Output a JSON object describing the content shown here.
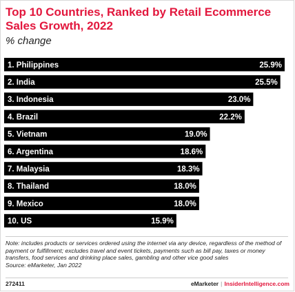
{
  "title": "Top 10 Countries, Ranked by Retail Ecommerce Sales Growth, 2022",
  "subtitle": "% change",
  "chart_data": {
    "type": "bar",
    "orientation": "horizontal",
    "categories": [
      "1. Philippines",
      "2. India",
      "3. Indonesia",
      "4. Brazil",
      "5. Vietnam",
      "6. Argentina",
      "7. Malaysia",
      "8. Thailand",
      "9. Mexico",
      "10. US"
    ],
    "values": [
      25.9,
      25.5,
      23.0,
      22.2,
      19.0,
      18.6,
      18.3,
      18.0,
      18.0,
      15.9
    ],
    "value_labels": [
      "25.9%",
      "25.5%",
      "23.0%",
      "22.2%",
      "19.0%",
      "18.6%",
      "18.3%",
      "18.0%",
      "18.0%",
      "15.9%"
    ],
    "bar_color": "#000000",
    "label_color": "#ffffff",
    "grid": false
  },
  "note": "Note: includes products or services ordered using the internet via any device, regardless of the method of payment or fulfillment; excludes travel and event tickets, payments such as bill pay, taxes or money transfers, food services and drinking place sales, gambling and other vice good sales",
  "source": "Source: eMarketer, Jan 2022",
  "footer": {
    "id": "272411",
    "brand1": "eMarketer",
    "separator": "|",
    "brand2": "InsiderIntelligence.com"
  },
  "colors": {
    "accent": "#e2173d",
    "bars": "#000000"
  }
}
